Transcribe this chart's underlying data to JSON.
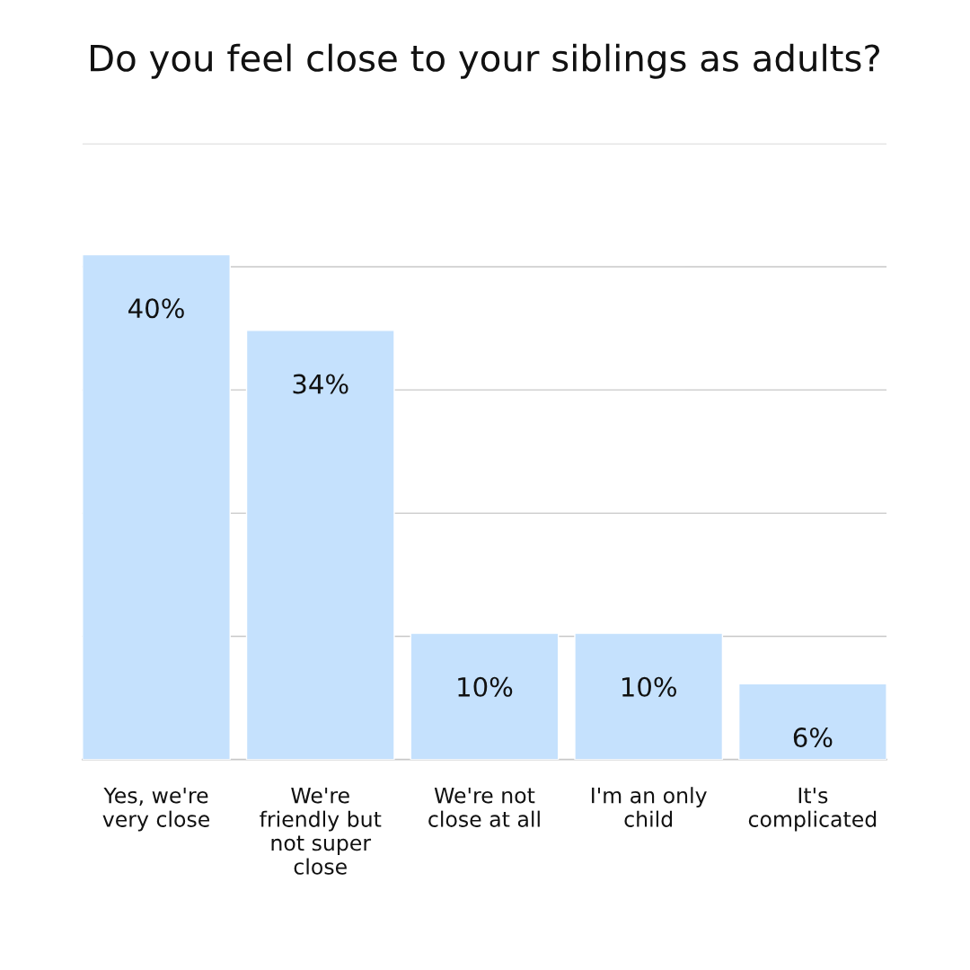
{
  "chart_data": {
    "type": "bar",
    "title": "Do you feel close to your siblings as adults?",
    "categories": [
      "Yes, we're\nvery close",
      "We're\nfriendly but\nnot super\nclose",
      "We're not\nclose at all",
      "I'm an only\nchild",
      "It's\ncomplicated"
    ],
    "values": [
      40,
      34,
      10,
      10,
      6
    ],
    "value_labels": [
      "40%",
      "34%",
      "10%",
      "10%",
      "6%"
    ],
    "color": "#c5e1fd",
    "grid": "y",
    "tick_labels": "x"
  }
}
